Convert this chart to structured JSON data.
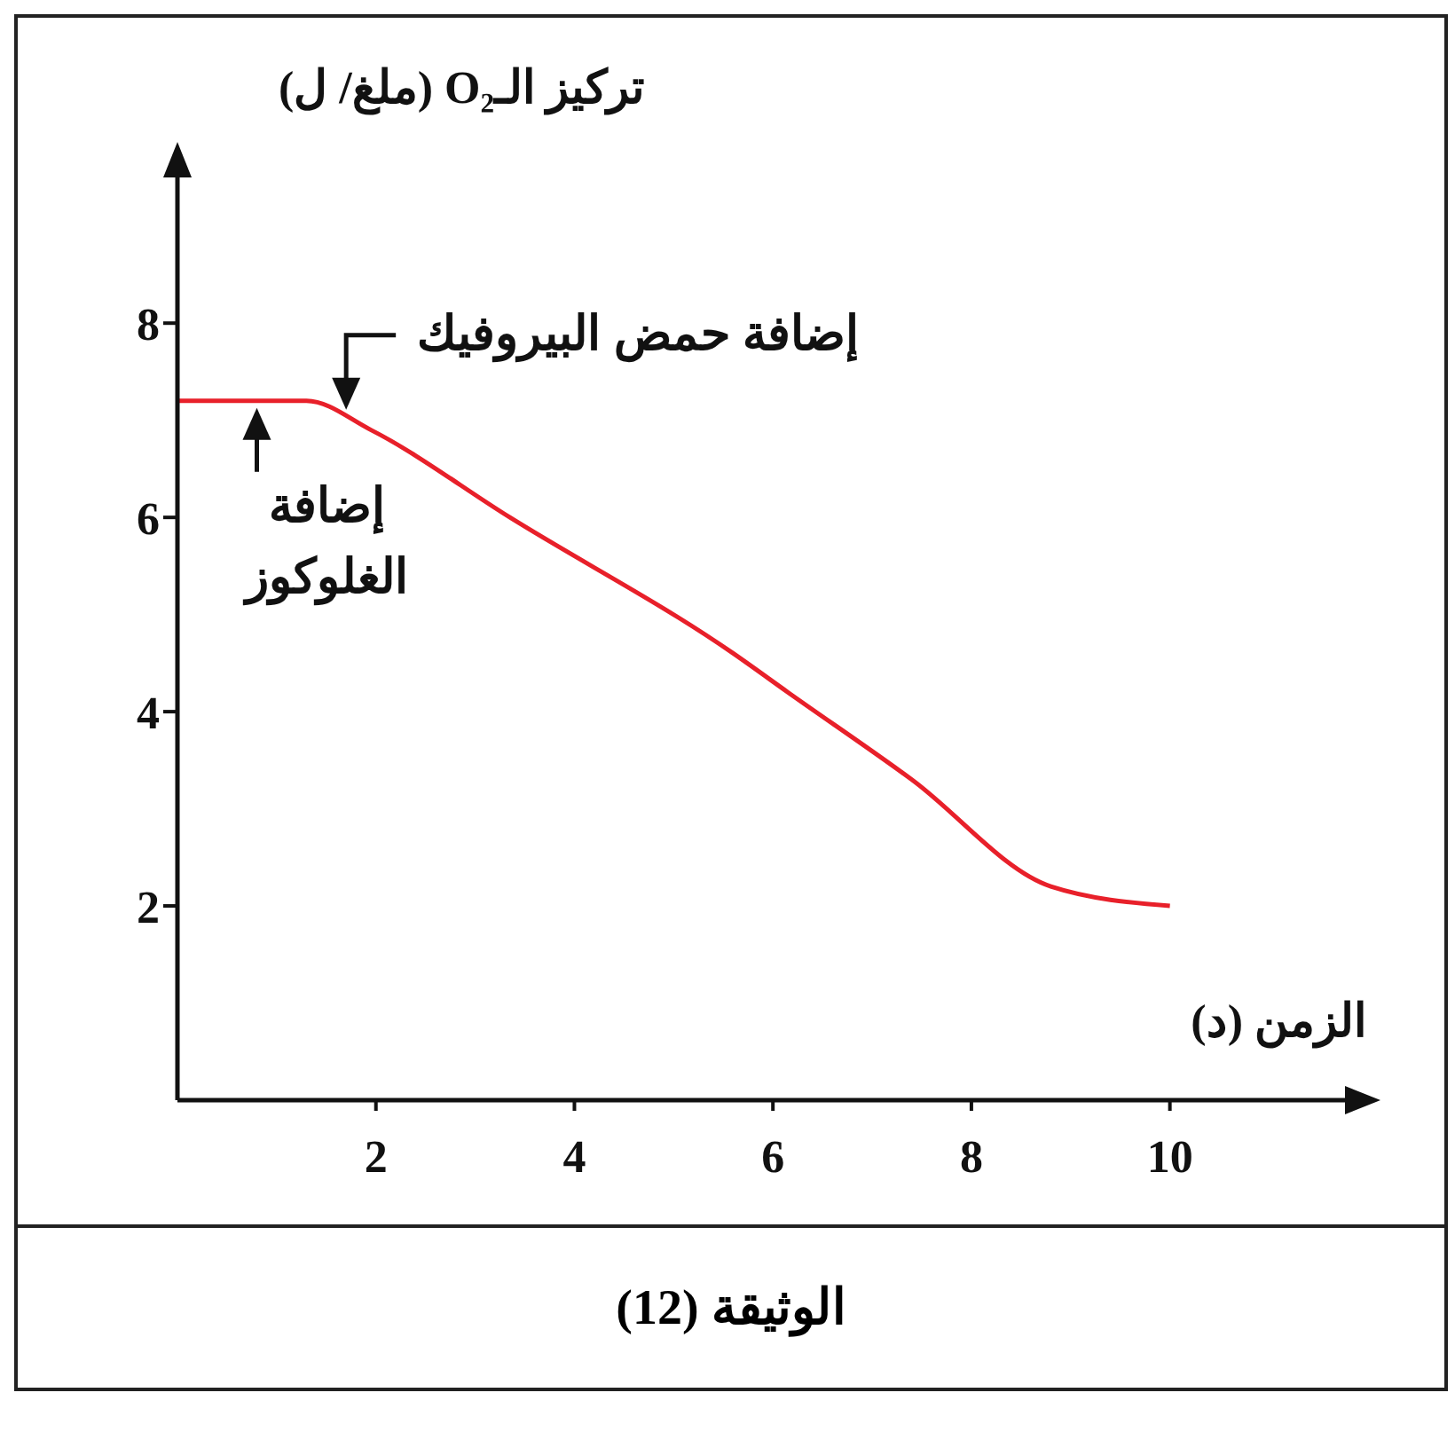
{
  "chart_data": {
    "type": "line",
    "xlabel": "الزمن (د)",
    "ylabel": "تركيز الـO₂ (ملغ/ ل)",
    "x": [
      0,
      1.3,
      1.95,
      3.35,
      5.6,
      6.15,
      7.4,
      8.8,
      10
    ],
    "series": [
      {
        "color": "#e8202a",
        "values": [
          7.2,
          7.2,
          6.9,
          6.0,
          4.6,
          4.2,
          3.3,
          2.2,
          2.0
        ]
      }
    ],
    "xlim": [
      0,
      11.8
    ],
    "xticks": [
      2,
      4,
      6,
      8,
      10
    ],
    "ylim": [
      0,
      9.5
    ],
    "yticks": [
      2,
      4,
      6,
      8
    ],
    "grid": false,
    "marker": "none",
    "line_style": "solid",
    "annotations": [
      {
        "text": "إضافة حمض البيروفيك",
        "x": 1.7,
        "y": 7.0
      },
      {
        "text": "إضافة الغلوكوز",
        "x": 0.8,
        "y": 7.2
      },
      "الوثيقة (12)"
    ]
  }
}
